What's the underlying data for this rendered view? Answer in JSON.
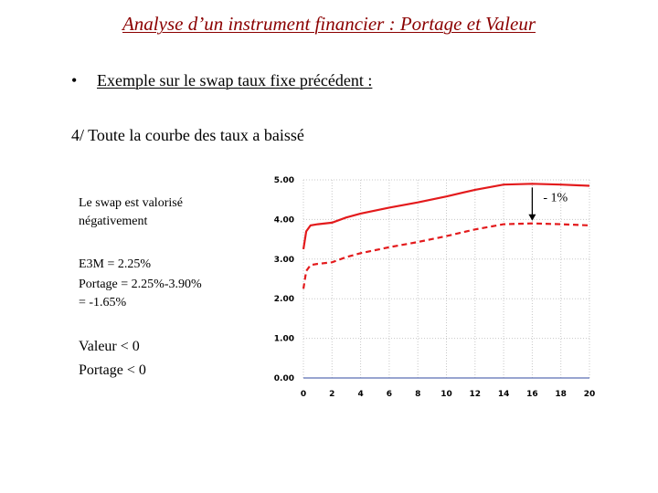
{
  "slide": {
    "title": "Analyse d’un instrument financier : Portage et Valeur",
    "bullet_symbol": "•",
    "bullet_text": "Exemple sur le swap taux fixe précédent :",
    "subheading": "4/ Toute la courbe des taux a baissé"
  },
  "notes": {
    "valuation_line1": "Le swap est valorisé",
    "valuation_line2": "négativement",
    "e3m": "E3M = 2.25%",
    "portage_line1": "Portage = 2.25%-3.90%",
    "portage_line2": "= -1.65%",
    "valeur": "Valeur < 0",
    "portage": "Portage < 0"
  },
  "chart_data": {
    "type": "line",
    "x_ticks": [
      0,
      2,
      4,
      6,
      8,
      10,
      12,
      14,
      16,
      18,
      20
    ],
    "y_ticks": [
      "0.00",
      "1.00",
      "2.00",
      "3.00",
      "4.00",
      "5.00"
    ],
    "xlim": [
      0,
      20
    ],
    "ylim": [
      0,
      5
    ],
    "grid": true,
    "series": [
      {
        "style": "solid",
        "color": "#e31a1c",
        "x": [
          0,
          0.2,
          0.5,
          1,
          2,
          3,
          4,
          6,
          8,
          10,
          12,
          14,
          16,
          18,
          20
        ],
        "y": [
          3.25,
          3.7,
          3.85,
          3.88,
          3.92,
          4.05,
          4.15,
          4.3,
          4.43,
          4.58,
          4.75,
          4.88,
          4.9,
          4.88,
          4.85
        ]
      },
      {
        "style": "dashed",
        "color": "#e31a1c",
        "x": [
          0,
          0.2,
          0.5,
          1,
          2,
          3,
          4,
          6,
          8,
          10,
          12,
          14,
          16,
          18,
          20
        ],
        "y": [
          2.25,
          2.7,
          2.85,
          2.88,
          2.92,
          3.05,
          3.15,
          3.3,
          3.43,
          3.58,
          3.75,
          3.88,
          3.9,
          3.88,
          3.85
        ]
      },
      {
        "style": "solid",
        "color": "#5b6fb5",
        "x": [
          0,
          20
        ],
        "y": [
          0,
          0
        ]
      }
    ],
    "annotation": {
      "label": "- 1%",
      "x": 16,
      "y_from": 4.9,
      "y_to": 3.9
    }
  }
}
